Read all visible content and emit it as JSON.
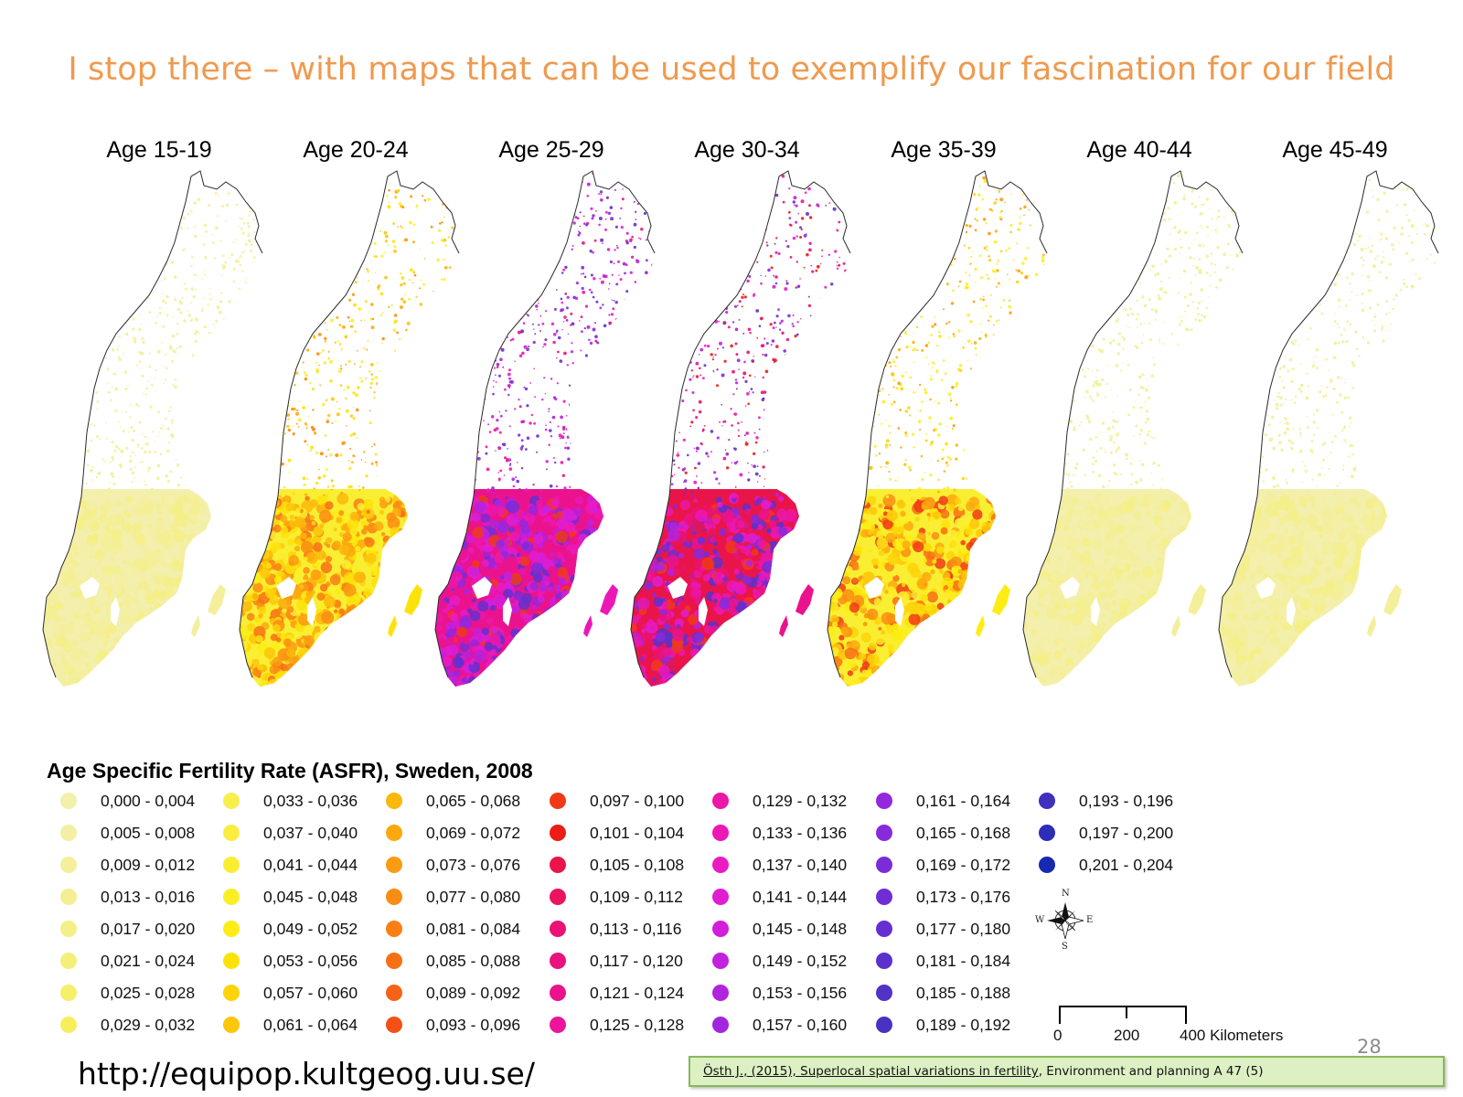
{
  "title": "I stop there – with maps that can be used to exemplify our fascination for our field",
  "panels": [
    {
      "label": "Age 15-19",
      "scheme": "pale"
    },
    {
      "label": "Age 20-24",
      "scheme": "yellow-orange"
    },
    {
      "label": "Age 25-29",
      "scheme": "magenta-purple"
    },
    {
      "label": "Age 30-34",
      "scheme": "pink-purple-red"
    },
    {
      "label": "Age 35-39",
      "scheme": "yellow-orange-light"
    },
    {
      "label": "Age 40-44",
      "scheme": "pale"
    },
    {
      "label": "Age 45-49",
      "scheme": "pale"
    }
  ],
  "legend": {
    "title": "Age Specific Fertility Rate (ASFR), Sweden, 2008",
    "classes": [
      {
        "label": "0,000 - 0,004",
        "color": "#f3efac"
      },
      {
        "label": "0,005 - 0,008",
        "color": "#f3efa4"
      },
      {
        "label": "0,009 - 0,012",
        "color": "#f3ef9b"
      },
      {
        "label": "0,013 - 0,016",
        "color": "#f3ef92"
      },
      {
        "label": "0,017 - 0,020",
        "color": "#f4ef86"
      },
      {
        "label": "0,021 - 0,024",
        "color": "#f4ef78"
      },
      {
        "label": "0,025 - 0,028",
        "color": "#f5ef69"
      },
      {
        "label": "0,029 - 0,032",
        "color": "#f6ef5b"
      },
      {
        "label": "0,033 - 0,036",
        "color": "#f8ee4c"
      },
      {
        "label": "0,037 - 0,040",
        "color": "#f9ee3f"
      },
      {
        "label": "0,041 - 0,044",
        "color": "#faee32"
      },
      {
        "label": "0,045 - 0,048",
        "color": "#fbee25"
      },
      {
        "label": "0,049 - 0,052",
        "color": "#fded14"
      },
      {
        "label": "0,053 - 0,056",
        "color": "#fde20a"
      },
      {
        "label": "0,057 - 0,060",
        "color": "#fdd409"
      },
      {
        "label": "0,061 - 0,064",
        "color": "#fcc60a"
      },
      {
        "label": "0,065 - 0,068",
        "color": "#fcb70c"
      },
      {
        "label": "0,069 - 0,072",
        "color": "#fba90e"
      },
      {
        "label": "0,073 - 0,076",
        "color": "#fa9b11"
      },
      {
        "label": "0,077 - 0,080",
        "color": "#f98d13"
      },
      {
        "label": "0,081 - 0,084",
        "color": "#f87f14"
      },
      {
        "label": "0,085 - 0,088",
        "color": "#f77015"
      },
      {
        "label": "0,089 - 0,092",
        "color": "#f66216"
      },
      {
        "label": "0,093 - 0,096",
        "color": "#f44f16"
      },
      {
        "label": "0,097 - 0,100",
        "color": "#f03a16"
      },
      {
        "label": "0,101 - 0,104",
        "color": "#ec1c16"
      },
      {
        "label": "0,105 - 0,108",
        "color": "#e9154a"
      },
      {
        "label": "0,109 - 0,112",
        "color": "#e81460"
      },
      {
        "label": "0,113 - 0,116",
        "color": "#e81372"
      },
      {
        "label": "0,117 - 0,120",
        "color": "#e9137f"
      },
      {
        "label": "0,121 - 0,124",
        "color": "#ea138d"
      },
      {
        "label": "0,125 - 0,128",
        "color": "#eb159b"
      },
      {
        "label": "0,129 - 0,132",
        "color": "#ec16a8"
      },
      {
        "label": "0,133 - 0,136",
        "color": "#ec18b6"
      },
      {
        "label": "0,137 - 0,140",
        "color": "#eb1bc4"
      },
      {
        "label": "0,141 - 0,144",
        "color": "#e11dd2"
      },
      {
        "label": "0,145 - 0,148",
        "color": "#d31fdc"
      },
      {
        "label": "0,149 - 0,152",
        "color": "#c221de"
      },
      {
        "label": "0,153 - 0,156",
        "color": "#b223de"
      },
      {
        "label": "0,157 - 0,160",
        "color": "#a126dd"
      },
      {
        "label": "0,161 - 0,164",
        "color": "#9328dc"
      },
      {
        "label": "0,165 - 0,168",
        "color": "#862bd9"
      },
      {
        "label": "0,169 - 0,172",
        "color": "#7a2dd6"
      },
      {
        "label": "0,173 - 0,176",
        "color": "#6e2ed3"
      },
      {
        "label": "0,177 - 0,180",
        "color": "#6430cf"
      },
      {
        "label": "0,181 - 0,184",
        "color": "#5b31cb"
      },
      {
        "label": "0,185 - 0,188",
        "color": "#5332c6"
      },
      {
        "label": "0,189 - 0,192",
        "color": "#4a32c1"
      },
      {
        "label": "0,193 - 0,196",
        "color": "#3f30bd"
      },
      {
        "label": "0,197 - 0,200",
        "color": "#2d2db8"
      },
      {
        "label": "0,201 - 0,204",
        "color": "#1629b0"
      }
    ]
  },
  "compass": {
    "n": "N",
    "s": "S",
    "e": "E",
    "w": "W"
  },
  "scale": {
    "tick_labels": [
      "0",
      "200",
      "400 Kilometers"
    ]
  },
  "footer": {
    "url": "http://equipop.kultgeog.uu.se/",
    "page_number": "28",
    "citation_link": "Östh J., (2015), Superlocal spatial variations in fertility",
    "citation_rest": ", Environment and planning A 47 (5)"
  }
}
